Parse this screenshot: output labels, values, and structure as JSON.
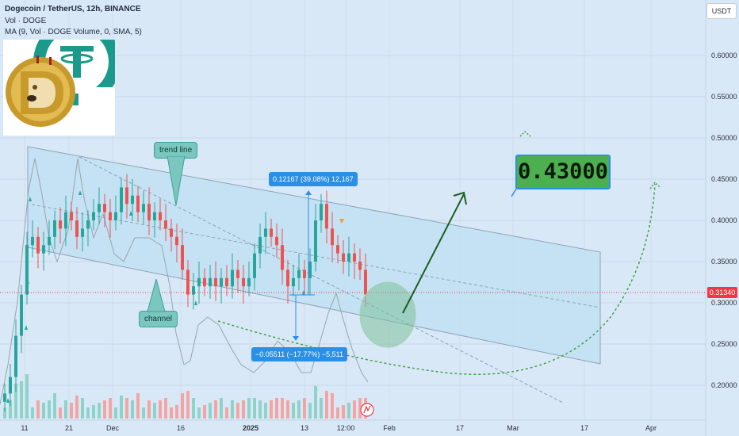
{
  "header": {
    "symbol_line": "Dogecoin / TetherUS, 12h, BINANCE",
    "vol_line": "Vol · DOGE",
    "ma_line": "MA (9, Vol · DOGE Volume, 0, SMA, 5)"
  },
  "currency_button": "USDT",
  "price_axis": {
    "ticks": [
      "0.60000",
      "0.55000",
      "0.50000",
      "0.45000",
      "0.40000",
      "0.35000",
      "0.30000",
      "0.25000",
      "0.20000"
    ],
    "last_price": "0.31340"
  },
  "time_axis": {
    "labels": [
      "11",
      "21",
      "Dec",
      "16",
      "2025",
      "13",
      "12:00",
      "Feb",
      "17",
      "Mar",
      "17",
      "Apr"
    ]
  },
  "annotations": {
    "trend_line": "trend line",
    "channel": "channel",
    "measure_up": "0.12167 (39.08%) 12,167",
    "measure_down": "−0.05511 (−17.77%) −5,511",
    "target": "0.43000"
  },
  "colors": {
    "background": "#d9e8f7",
    "up_candle": "#26a69a",
    "down_candle": "#ef5350",
    "channel_fill": "#bfe0f2",
    "target_green": "#4caf50",
    "arrow_green": "#1b5e20",
    "projection_dotted": "#43a047"
  },
  "chart_data": {
    "type": "candlestick",
    "title": "Dogecoin / TetherUS, 12h, BINANCE",
    "y_axis": {
      "min": 0.15,
      "max": 0.64,
      "unit": "USDT"
    },
    "series": [
      {
        "name": "DOGE/USDT",
        "kind": "close",
        "values": [
          0.19,
          0.21,
          0.26,
          0.31,
          0.37,
          0.38,
          0.36,
          0.37,
          0.38,
          0.4,
          0.39,
          0.41,
          0.4,
          0.38,
          0.39,
          0.4,
          0.41,
          0.42,
          0.41,
          0.4,
          0.41,
          0.44,
          0.42,
          0.43,
          0.41,
          0.42,
          0.4,
          0.41,
          0.4,
          0.39,
          0.38,
          0.37,
          0.34,
          0.31,
          0.32,
          0.33,
          0.32,
          0.33,
          0.32,
          0.33,
          0.32,
          0.34,
          0.33,
          0.32,
          0.33,
          0.36,
          0.38,
          0.39,
          0.38,
          0.37,
          0.34,
          0.32,
          0.33,
          0.34,
          0.33,
          0.35,
          0.4,
          0.42,
          0.39,
          0.37,
          0.36,
          0.35,
          0.36,
          0.35,
          0.34,
          0.31
        ]
      }
    ],
    "last_price": 0.3134,
    "drawings": {
      "target_price": 0.43,
      "measure_up": {
        "change": 0.12167,
        "percent": 39.08
      },
      "measure_down": {
        "change": -0.05511,
        "percent": -17.77
      }
    }
  }
}
